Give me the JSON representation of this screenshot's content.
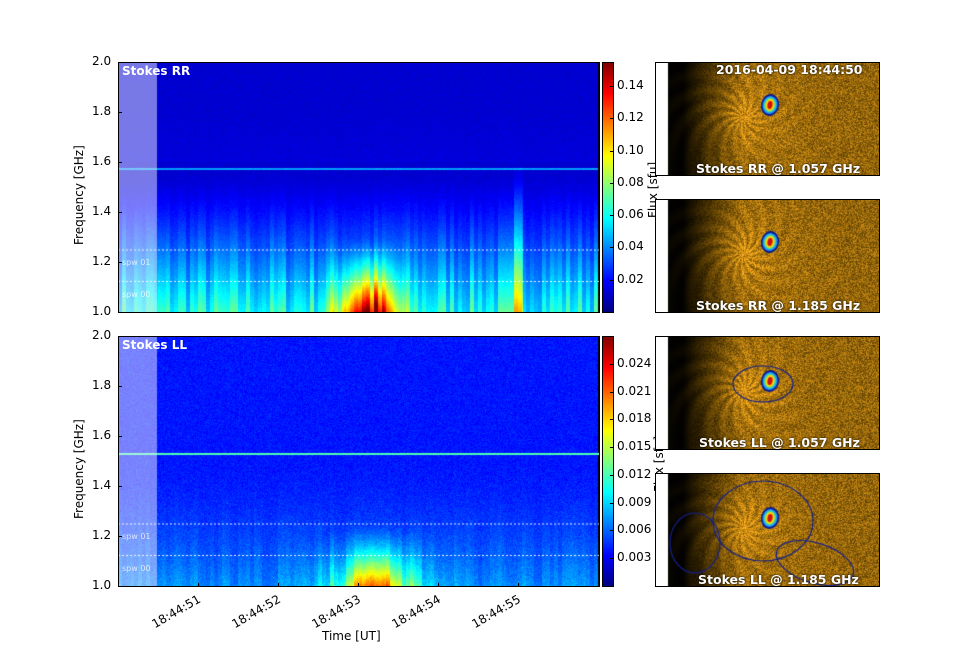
{
  "chart_data": [
    {
      "type": "heatmap",
      "title": "Stokes RR",
      "xlabel": "",
      "ylabel": "Frequency [GHz]",
      "xlim": [
        "18:44:50",
        "18:44:56"
      ],
      "ylim": [
        1.0,
        2.0
      ],
      "yticks": [
        "1.0",
        "1.2",
        "1.4",
        "1.6",
        "1.8",
        "2.0"
      ],
      "colormap": "jet",
      "colorbar": {
        "label": "Flux [sfu]",
        "clim": [
          0.0,
          0.155
        ],
        "ticks": [
          "0.02",
          "0.04",
          "0.06",
          "0.08",
          "0.10",
          "0.12",
          "0.14"
        ]
      },
      "annotations": [
        "spw 00",
        "spw 01"
      ],
      "spw_boundaries_ghz": [
        1.124,
        1.25
      ],
      "highlighted_time_range": [
        "18:44:50.0",
        "18:44:50.5"
      ]
    },
    {
      "type": "heatmap",
      "title": "Stokes LL",
      "xlabel": "Time [UT]",
      "ylabel": "Frequency [GHz]",
      "xlim": [
        "18:44:50",
        "18:44:56"
      ],
      "ylim": [
        1.0,
        2.0
      ],
      "yticks": [
        "1.0",
        "1.2",
        "1.4",
        "1.6",
        "1.8",
        "2.0"
      ],
      "xticks": [
        "18:44:51",
        "18:44:52",
        "18:44:53",
        "18:44:54",
        "18:44:55"
      ],
      "colormap": "jet",
      "colorbar": {
        "label": "Flux [sfu]",
        "clim": [
          0.0,
          0.027
        ],
        "ticks": [
          "0.003",
          "0.006",
          "0.009",
          "0.012",
          "0.015",
          "0.018",
          "0.021",
          "0.024"
        ]
      },
      "annotations": [
        "spw 00",
        "spw 01"
      ],
      "spw_boundaries_ghz": [
        1.124,
        1.25
      ],
      "highlighted_time_range": [
        "18:44:50.0",
        "18:44:50.5"
      ]
    }
  ],
  "images": {
    "timestamp": "2016-04-09 18:44:50",
    "panels": [
      {
        "label": "Stokes RR @ 1.057 GHz"
      },
      {
        "label": "Stokes RR @ 1.185 GHz"
      },
      {
        "label": "Stokes LL @ 1.057 GHz"
      },
      {
        "label": "Stokes LL @ 1.185 GHz"
      }
    ]
  }
}
